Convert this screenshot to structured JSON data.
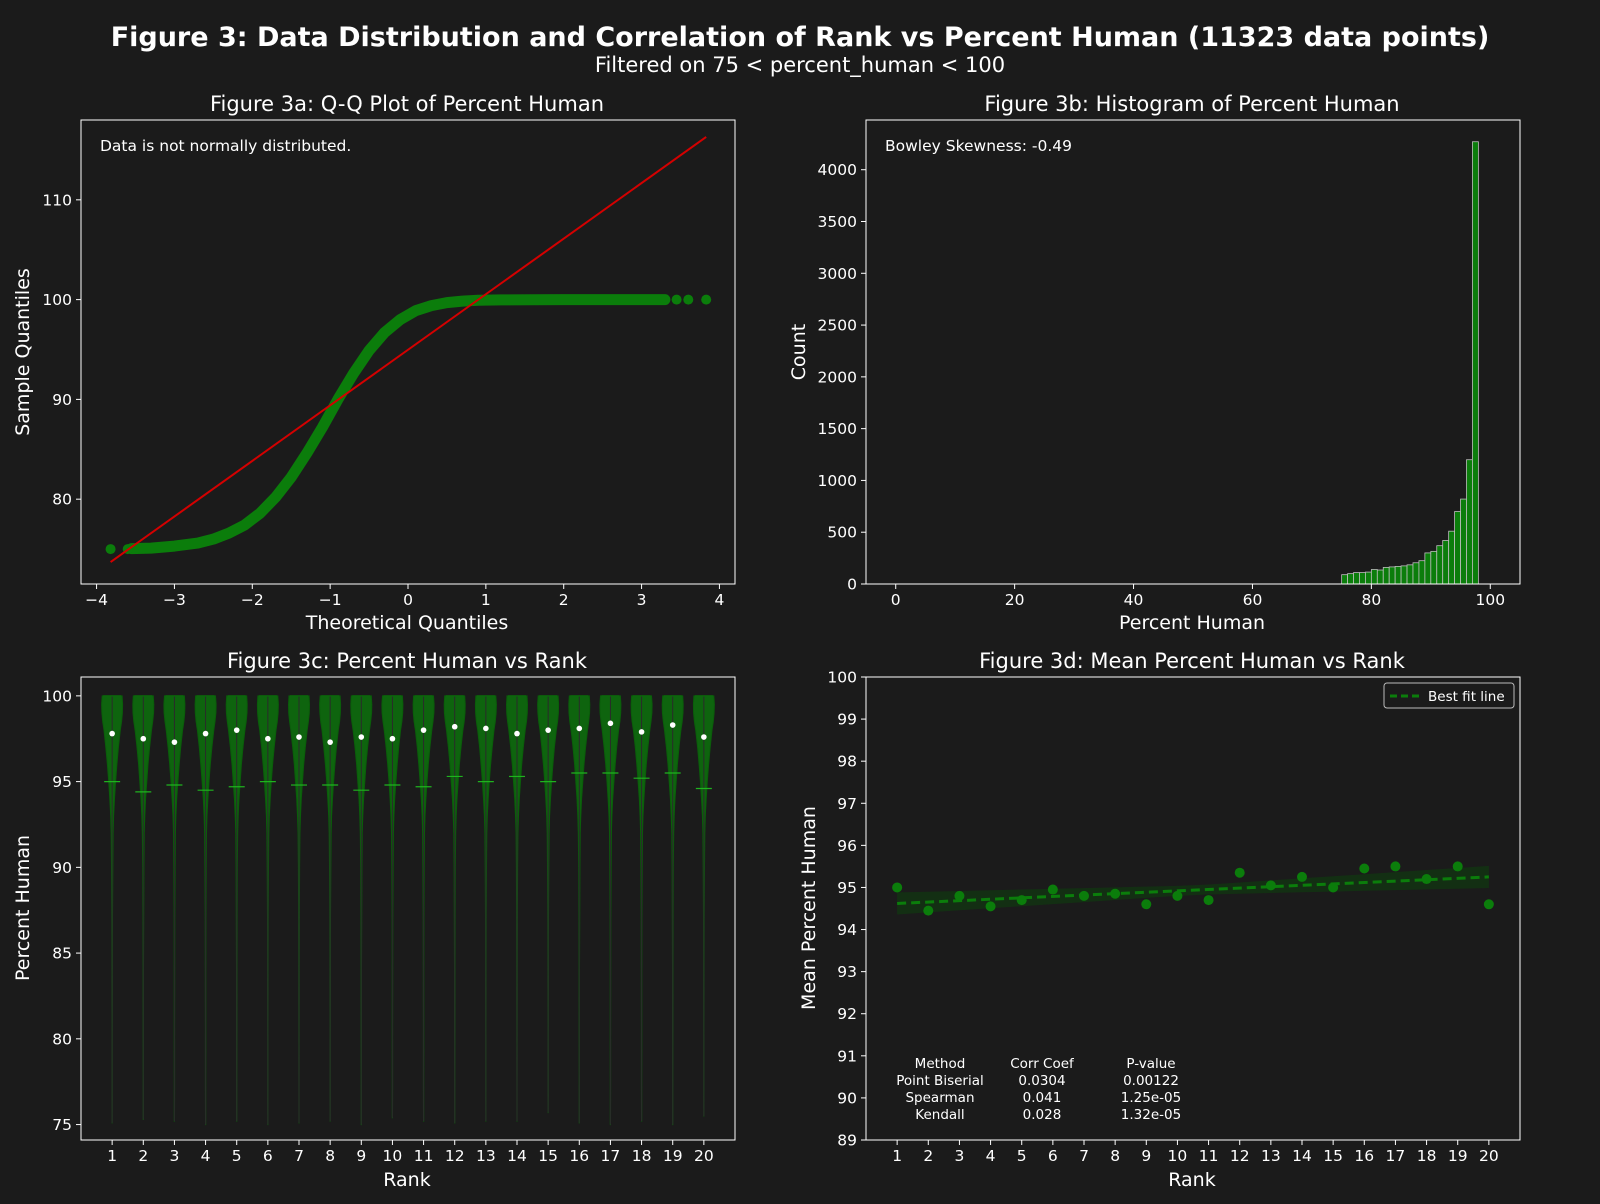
{
  "figure": {
    "title": "Figure 3: Data Distribution and Correlation of Rank vs Percent Human (11323 data points)",
    "subtitle": "Filtered on 75 < percent_human < 100"
  },
  "colors": {
    "background": "#1b1b1b",
    "green": "#0b7d0b",
    "red": "#d40000",
    "bar_edge": "#bdbdbd"
  },
  "chart_data": [
    {
      "type": "scatter",
      "id": "qq",
      "title": "Figure 3a: Q-Q Plot of Percent Human",
      "xlabel": "Theoretical Quantiles",
      "ylabel": "Sample Quantiles",
      "annotation": "Data is not normally distributed.",
      "xlim": [
        -4.2,
        4.2
      ],
      "ylim": [
        71.5,
        118
      ],
      "xticks": [
        -4,
        -3,
        -2,
        -1,
        0,
        1,
        2,
        3,
        4
      ],
      "xtick_labels": [
        "−4",
        "−3",
        "−2",
        "−1",
        "0",
        "1",
        "2",
        "3",
        "4"
      ],
      "yticks": [
        80,
        90,
        100,
        110
      ],
      "curve_points": [
        [
          -3.55,
          75.05
        ],
        [
          -3.3,
          75.1
        ],
        [
          -3.0,
          75.3
        ],
        [
          -2.7,
          75.6
        ],
        [
          -2.5,
          76.0
        ],
        [
          -2.3,
          76.6
        ],
        [
          -2.1,
          77.4
        ],
        [
          -1.9,
          78.6
        ],
        [
          -1.7,
          80.2
        ],
        [
          -1.5,
          82.2
        ],
        [
          -1.3,
          84.6
        ],
        [
          -1.1,
          87.2
        ],
        [
          -0.9,
          90.0
        ],
        [
          -0.7,
          92.6
        ],
        [
          -0.5,
          94.9
        ],
        [
          -0.3,
          96.7
        ],
        [
          -0.1,
          98.0
        ],
        [
          0.1,
          98.9
        ],
        [
          0.3,
          99.4
        ],
        [
          0.5,
          99.7
        ],
        [
          0.7,
          99.85
        ],
        [
          0.9,
          99.93
        ],
        [
          1.2,
          99.97
        ],
        [
          1.6,
          99.99
        ],
        [
          2.0,
          100
        ],
        [
          2.5,
          100
        ],
        [
          3.0,
          100
        ],
        [
          3.3,
          100
        ]
      ],
      "outlier_points": [
        [
          -3.82,
          75.0
        ],
        [
          -3.6,
          75.0
        ],
        [
          3.45,
          100
        ],
        [
          3.6,
          100
        ],
        [
          3.83,
          100
        ]
      ],
      "reference_line": [
        [
          -3.82,
          73.7
        ],
        [
          3.83,
          116.3
        ]
      ]
    },
    {
      "type": "bar",
      "id": "hist",
      "title": "Figure 3b: Histogram of Percent Human",
      "xlabel": "Percent Human",
      "ylabel": "Count",
      "annotation": "Bowley Skewness: -0.49",
      "xlim": [
        -5,
        105
      ],
      "ylim": [
        0,
        4480
      ],
      "xticks": [
        0,
        20,
        40,
        60,
        80,
        100
      ],
      "yticks": [
        0,
        500,
        1000,
        1500,
        2000,
        2500,
        3000,
        3500,
        4000
      ],
      "bin_start": 75,
      "bin_width": 1,
      "counts": [
        90,
        100,
        110,
        110,
        115,
        140,
        135,
        160,
        165,
        170,
        175,
        185,
        205,
        225,
        300,
        315,
        370,
        420,
        510,
        700,
        820,
        1200,
        4270
      ]
    },
    {
      "type": "violin",
      "id": "violin",
      "title": "Figure 3c: Percent Human vs Rank",
      "xlabel": "Rank",
      "ylabel": "Percent Human",
      "xlim": [
        0,
        21
      ],
      "ylim": [
        74.1,
        101.1
      ],
      "yticks": [
        75,
        80,
        85,
        90,
        95,
        100
      ],
      "categories": [
        "1",
        "2",
        "3",
        "4",
        "5",
        "6",
        "7",
        "8",
        "9",
        "10",
        "11",
        "12",
        "13",
        "14",
        "15",
        "16",
        "17",
        "18",
        "19",
        "20"
      ],
      "medians": [
        97.8,
        97.5,
        97.3,
        97.8,
        98.0,
        97.5,
        97.6,
        97.3,
        97.6,
        97.5,
        98.0,
        98.2,
        98.1,
        97.8,
        98.0,
        98.1,
        98.4,
        97.9,
        98.3,
        97.6
      ],
      "means": [
        95.0,
        94.4,
        94.8,
        94.5,
        94.7,
        95.0,
        94.8,
        94.8,
        94.5,
        94.8,
        94.7,
        95.3,
        95.0,
        95.3,
        95.0,
        95.5,
        95.5,
        95.2,
        95.5,
        94.6
      ],
      "mins": [
        75.1,
        75.3,
        75.2,
        75.0,
        75.2,
        75.0,
        75.1,
        75.2,
        75.0,
        75.4,
        75.2,
        75.1,
        75.2,
        75.2,
        75.7,
        75.1,
        75.0,
        75.2,
        75.0,
        75.5
      ],
      "max": 100
    },
    {
      "type": "scatter",
      "id": "mean",
      "title": "Figure 3d: Mean Percent Human vs Rank",
      "xlabel": "Rank",
      "ylabel": "Mean Percent Human",
      "legend": "Best fit line",
      "legend_position": "top-right",
      "xlim": [
        0,
        21
      ],
      "ylim": [
        89,
        100
      ],
      "xticks": [
        "1",
        "2",
        "3",
        "4",
        "5",
        "6",
        "7",
        "8",
        "9",
        "10",
        "11",
        "12",
        "13",
        "14",
        "15",
        "16",
        "17",
        "18",
        "19",
        "20"
      ],
      "yticks": [
        89,
        90,
        91,
        92,
        93,
        94,
        95,
        96,
        97,
        98,
        99,
        100
      ],
      "x": [
        1,
        2,
        3,
        4,
        5,
        6,
        7,
        8,
        9,
        10,
        11,
        12,
        13,
        14,
        15,
        16,
        17,
        18,
        19,
        20
      ],
      "y": [
        95.0,
        94.45,
        94.8,
        94.55,
        94.7,
        94.95,
        94.8,
        94.85,
        94.6,
        94.8,
        94.7,
        95.35,
        95.05,
        95.25,
        95.0,
        95.45,
        95.5,
        95.2,
        95.5,
        94.6
      ],
      "fit_line": [
        [
          1,
          94.62
        ],
        [
          20,
          95.25
        ]
      ],
      "table": {
        "headers": [
          "Method",
          "Corr Coef",
          "P-value"
        ],
        "rows": [
          [
            "Point Biserial",
            "0.0304",
            "0.00122"
          ],
          [
            "Spearman",
            "0.041",
            "1.25e-05"
          ],
          [
            "Kendall",
            "0.028",
            "1.32e-05"
          ]
        ]
      }
    }
  ]
}
